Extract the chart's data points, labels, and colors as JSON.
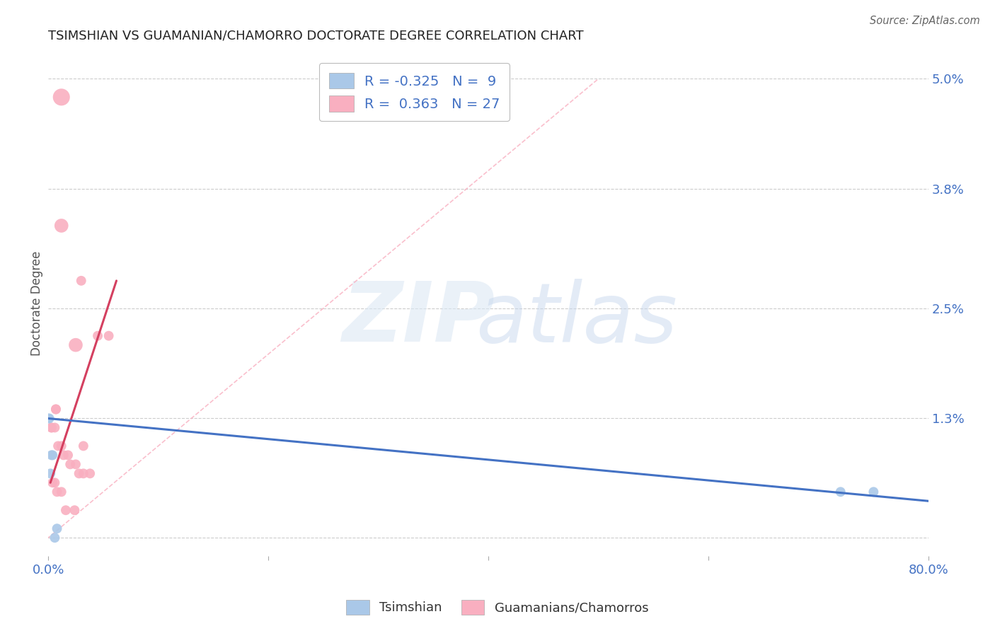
{
  "title": "TSIMSHIAN VS GUAMANIAN/CHAMORRO DOCTORATE DEGREE CORRELATION CHART",
  "source": "Source: ZipAtlas.com",
  "ylabel": "Doctorate Degree",
  "xlim": [
    0.0,
    0.8
  ],
  "ylim": [
    -0.002,
    0.053
  ],
  "yticks": [
    0.0,
    0.013,
    0.025,
    0.038,
    0.05
  ],
  "ytick_labels": [
    "",
    "1.3%",
    "2.5%",
    "3.8%",
    "5.0%"
  ],
  "xticks": [
    0.0,
    0.2,
    0.4,
    0.6,
    0.8
  ],
  "xtick_labels": [
    "0.0%",
    "",
    "",
    "",
    "80.0%"
  ],
  "background_color": "#ffffff",
  "tsimshian": {
    "color": "#aac8e8",
    "line_color": "#4472c4",
    "R": -0.325,
    "N": 9,
    "x": [
      0.001,
      0.003,
      0.0,
      0.004,
      0.002,
      0.72,
      0.75,
      0.008,
      0.006
    ],
    "y": [
      0.013,
      0.009,
      0.013,
      0.009,
      0.007,
      0.005,
      0.005,
      0.001,
      0.0
    ],
    "sizes": [
      80,
      80,
      80,
      80,
      80,
      80,
      80,
      80,
      80
    ]
  },
  "guamanian": {
    "color": "#f9afc0",
    "line_color": "#d44060",
    "R": 0.363,
    "N": 27,
    "x": [
      0.012,
      0.012,
      0.03,
      0.055,
      0.045,
      0.025,
      0.007,
      0.007,
      0.003,
      0.003,
      0.006,
      0.009,
      0.012,
      0.014,
      0.018,
      0.02,
      0.025,
      0.028,
      0.032,
      0.038,
      0.004,
      0.006,
      0.008,
      0.012,
      0.016,
      0.024,
      0.032
    ],
    "y": [
      0.048,
      0.034,
      0.028,
      0.022,
      0.022,
      0.021,
      0.014,
      0.014,
      0.012,
      0.012,
      0.012,
      0.01,
      0.01,
      0.009,
      0.009,
      0.008,
      0.008,
      0.007,
      0.007,
      0.007,
      0.006,
      0.006,
      0.005,
      0.005,
      0.003,
      0.003,
      0.01
    ],
    "sizes": [
      300,
      200,
      100,
      100,
      100,
      200,
      100,
      100,
      100,
      100,
      100,
      100,
      100,
      100,
      100,
      100,
      100,
      100,
      100,
      100,
      100,
      100,
      100,
      100,
      100,
      100,
      100
    ]
  },
  "tsimshian_dot_size": 100,
  "legend_R_blue": "-0.325",
  "legend_N_blue": "9",
  "legend_R_pink": "0.363",
  "legend_N_pink": "27"
}
